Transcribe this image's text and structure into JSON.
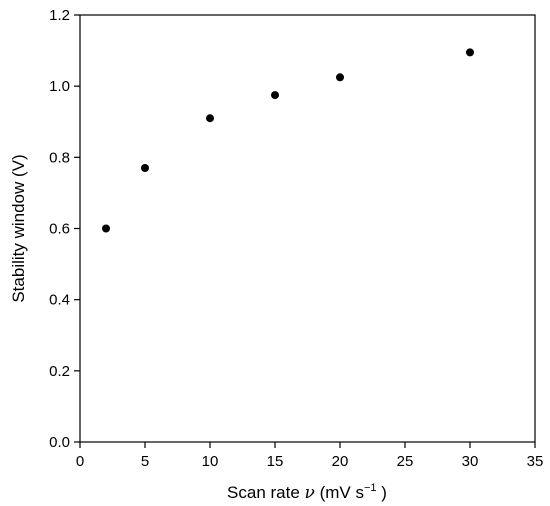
{
  "chart_data": {
    "type": "scatter",
    "title": "",
    "xlabel": {
      "prefix": "Scan rate ",
      "symbol": "ν",
      "suffix_open": " (mV s",
      "superscript": "−1",
      "suffix_close": " )"
    },
    "ylabel": "Stability window (V)",
    "xlim": [
      0,
      35
    ],
    "ylim": [
      0,
      1.2
    ],
    "xticks": [
      0,
      5,
      10,
      15,
      20,
      25,
      30,
      35
    ],
    "yticks": [
      0.0,
      0.2,
      0.4,
      0.6,
      0.8,
      1.0,
      1.2
    ],
    "xtick_labels": [
      "0",
      "5",
      "10",
      "15",
      "20",
      "25",
      "30",
      "35"
    ],
    "ytick_labels": [
      "0.0",
      "0.2",
      "0.4",
      "0.6",
      "0.8",
      "1.0",
      "1.2"
    ],
    "grid": false,
    "points": [
      {
        "x": 2,
        "y": 0.6
      },
      {
        "x": 5,
        "y": 0.77
      },
      {
        "x": 10,
        "y": 0.91
      },
      {
        "x": 15,
        "y": 0.975
      },
      {
        "x": 20,
        "y": 1.025
      },
      {
        "x": 30,
        "y": 1.095
      }
    ],
    "marker_color": "#000000"
  }
}
